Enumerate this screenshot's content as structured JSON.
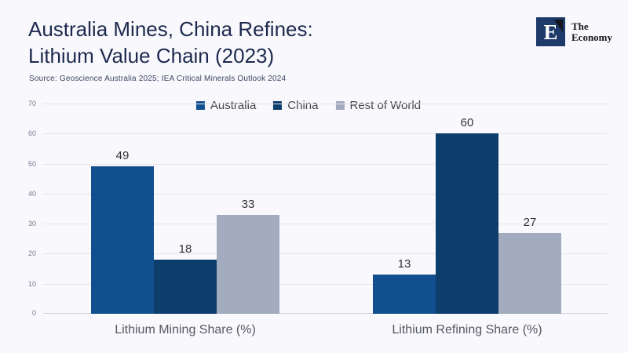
{
  "page": {
    "background": "#f8f8fd"
  },
  "header": {
    "title_line1": "Australia Mines, China Refines:",
    "title_line2": "Lithium Value Chain (2023)",
    "source": "Source:  Geoscience Australia 2025; IEA Critical Minerals Outlook 2024"
  },
  "logo": {
    "mark_letter": "E",
    "name_line1": "The",
    "name_line2": "Economy",
    "mark_color": "#1e3a68"
  },
  "chart_data": {
    "type": "bar",
    "title": "Australia Mines, China Refines: Lithium Value Chain (2023)",
    "categories": [
      "Lithium Mining Share (%)",
      "Lithium Refining Share (%)"
    ],
    "series": [
      {
        "name": "Australia",
        "color": "#114f8e",
        "values": [
          49,
          13
        ]
      },
      {
        "name": "China",
        "color": "#0c3d6b",
        "values": [
          18,
          60
        ]
      },
      {
        "name": "Rest of World",
        "color": "#a3abbe",
        "values": [
          33,
          27
        ]
      }
    ],
    "ylim": [
      0,
      70
    ],
    "yticks": [
      0,
      10,
      20,
      30,
      40,
      50,
      60,
      70
    ],
    "grid": true,
    "legend_position": "top-center",
    "bar_value_labels": [
      49,
      18,
      33,
      13,
      60,
      27
    ]
  }
}
